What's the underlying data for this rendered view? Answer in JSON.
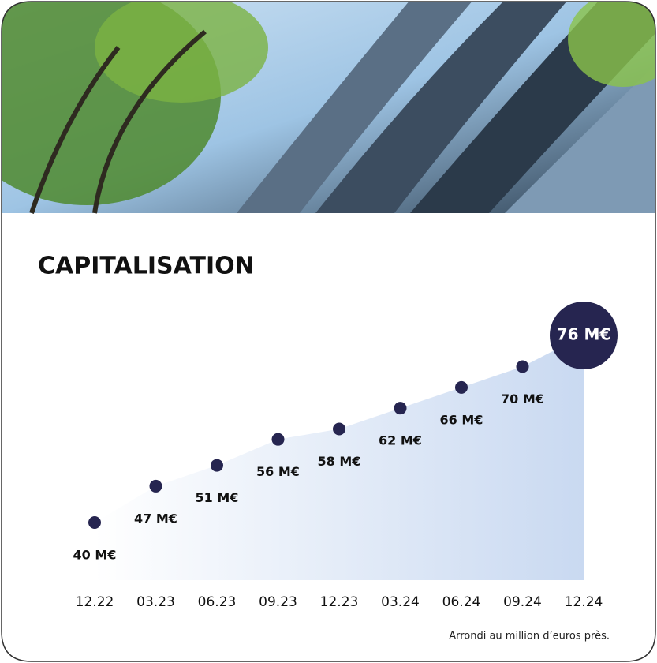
{
  "chart_data": {
    "type": "area",
    "title": "CAPITALISATION",
    "categories": [
      "12.22",
      "03.23",
      "06.23",
      "09.23",
      "12.23",
      "03.24",
      "06.24",
      "09.24",
      "12.24"
    ],
    "values": [
      40,
      47,
      51,
      56,
      58,
      62,
      66,
      70,
      76
    ],
    "value_labels": [
      "40 M€",
      "47 M€",
      "51 M€",
      "56 M€",
      "58 M€",
      "62 M€",
      "66 M€",
      "70 M€",
      "76 M€"
    ],
    "color": "#262550",
    "note": "Arrondi au million d’euros près."
  }
}
